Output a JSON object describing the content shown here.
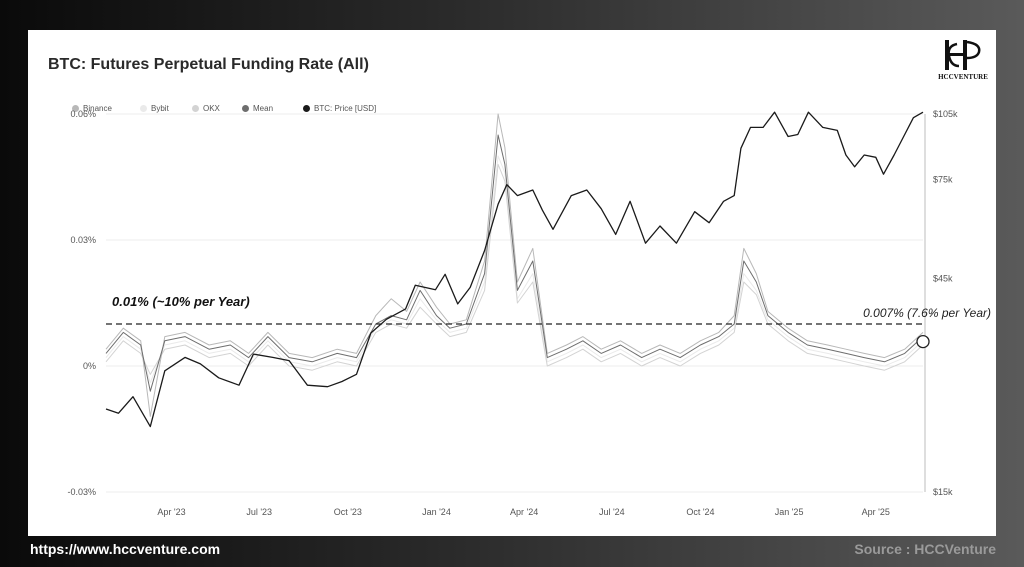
{
  "chart_data": {
    "type": "line",
    "title": "BTC: Futures Perpetual Funding Rate (All)",
    "legend": [
      "Binance",
      "Bybit",
      "OKX",
      "Mean",
      "BTC: Price [USD]"
    ],
    "legend_placement": "top-left",
    "series_colors": {
      "Binance": "#b8b8b8",
      "Bybit": "#eaeaea",
      "OKX": "#d3d3d3",
      "Mean": "#6e6e6e",
      "BTC: Price [USD]": "#1a1a1a"
    },
    "x_tick_labels": [
      "Apr '23",
      "Jul '23",
      "Oct '23",
      "Jan '24",
      "Apr '24",
      "Jul '24",
      "Oct '24",
      "Jan '25",
      "Apr '25"
    ],
    "x_range": [
      "2023-01-23",
      "2025-05-20"
    ],
    "y_left": {
      "range": [
        -0.03,
        0.06
      ],
      "ticks": [
        -0.03,
        0,
        0.03,
        0.06
      ],
      "tick_labels": [
        "-0.03%",
        "0%",
        "0.03%",
        "0.06%"
      ]
    },
    "y_right": {
      "scale": "log",
      "range": [
        15000,
        105000
      ],
      "ticks": [
        15000,
        45000,
        75000,
        105000
      ],
      "tick_labels": [
        "$15k",
        "$45k",
        "$75k",
        "$105k"
      ]
    },
    "grid": true,
    "reference_line": {
      "value": 0.01,
      "style": "dashed"
    },
    "annotations": {
      "left_text": "0.01% (~10% per Year)",
      "right_text": "0.007% (7.6% per Year)"
    },
    "latest_funding_marker": {
      "date": "2025-05-20",
      "value": 0.007
    },
    "btc_price": {
      "dates": [
        "2023-01-23",
        "2023-02-05",
        "2023-02-20",
        "2023-03-10",
        "2023-03-25",
        "2023-04-15",
        "2023-05-01",
        "2023-05-20",
        "2023-06-10",
        "2023-06-25",
        "2023-07-15",
        "2023-08-01",
        "2023-08-20",
        "2023-09-10",
        "2023-09-25",
        "2023-10-10",
        "2023-10-25",
        "2023-11-10",
        "2023-11-30",
        "2023-12-10",
        "2023-12-31",
        "2024-01-10",
        "2024-01-23",
        "2024-02-05",
        "2024-02-20",
        "2024-03-05",
        "2024-03-14",
        "2024-03-25",
        "2024-04-10",
        "2024-04-20",
        "2024-05-01",
        "2024-05-20",
        "2024-06-05",
        "2024-06-20",
        "2024-07-05",
        "2024-07-20",
        "2024-08-05",
        "2024-08-20",
        "2024-09-06",
        "2024-09-25",
        "2024-10-10",
        "2024-10-25",
        "2024-11-05",
        "2024-11-12",
        "2024-11-22",
        "2024-12-05",
        "2024-12-17",
        "2024-12-31",
        "2025-01-10",
        "2025-01-21",
        "2025-02-05",
        "2025-02-20",
        "2025-03-01",
        "2025-03-10",
        "2025-03-20",
        "2025-04-01",
        "2025-04-09",
        "2025-04-20",
        "2025-05-01",
        "2025-05-10",
        "2025-05-20"
      ],
      "values": [
        23000,
        22500,
        24500,
        21000,
        28000,
        30000,
        29000,
        27000,
        26000,
        30500,
        30000,
        29500,
        26000,
        25800,
        26500,
        27500,
        34000,
        36500,
        38500,
        43500,
        42500,
        46000,
        39500,
        43000,
        52000,
        66000,
        73000,
        69000,
        71000,
        64000,
        58000,
        69000,
        71000,
        64500,
        56500,
        67000,
        54000,
        59000,
        54000,
        63500,
        60000,
        67000,
        69000,
        88000,
        98000,
        98000,
        106000,
        93500,
        94500,
        106000,
        98000,
        96500,
        85000,
        80000,
        85000,
        84000,
        77000,
        85000,
        94500,
        103000,
        106000
      ]
    },
    "mean_funding_rate": {
      "dates": [
        "2023-01-23",
        "2023-02-10",
        "2023-02-28",
        "2023-03-10",
        "2023-03-25",
        "2023-04-15",
        "2023-05-10",
        "2023-06-01",
        "2023-06-20",
        "2023-07-10",
        "2023-08-01",
        "2023-08-25",
        "2023-09-20",
        "2023-10-10",
        "2023-10-30",
        "2023-11-15",
        "2023-12-01",
        "2023-12-15",
        "2024-01-01",
        "2024-01-15",
        "2024-02-01",
        "2024-02-20",
        "2024-03-05",
        "2024-03-12",
        "2024-03-25",
        "2024-04-10",
        "2024-04-25",
        "2024-05-15",
        "2024-06-01",
        "2024-06-20",
        "2024-07-10",
        "2024-08-01",
        "2024-08-20",
        "2024-09-10",
        "2024-10-01",
        "2024-10-20",
        "2024-11-05",
        "2024-11-15",
        "2024-11-28",
        "2024-12-10",
        "2024-12-31",
        "2025-01-20",
        "2025-02-10",
        "2025-03-01",
        "2025-03-20",
        "2025-04-10",
        "2025-05-01",
        "2025-05-20"
      ],
      "values": [
        0.003,
        0.008,
        0.005,
        -0.006,
        0.006,
        0.007,
        0.004,
        0.005,
        0.002,
        0.007,
        0.002,
        0.001,
        0.003,
        0.002,
        0.01,
        0.012,
        0.011,
        0.018,
        0.012,
        0.009,
        0.01,
        0.022,
        0.055,
        0.048,
        0.018,
        0.025,
        0.002,
        0.004,
        0.006,
        0.003,
        0.005,
        0.002,
        0.004,
        0.002,
        0.005,
        0.007,
        0.01,
        0.025,
        0.02,
        0.012,
        0.008,
        0.005,
        0.004,
        0.003,
        0.002,
        0.001,
        0.003,
        0.007
      ]
    },
    "binance_funding_rate": {
      "dates": [
        "2023-01-23",
        "2023-02-10",
        "2023-02-28",
        "2023-03-10",
        "2023-03-25",
        "2023-04-15",
        "2023-05-10",
        "2023-06-01",
        "2023-06-20",
        "2023-07-10",
        "2023-08-01",
        "2023-08-25",
        "2023-09-20",
        "2023-10-10",
        "2023-10-30",
        "2023-11-15",
        "2023-12-01",
        "2023-12-15",
        "2024-01-01",
        "2024-01-15",
        "2024-02-01",
        "2024-02-20",
        "2024-03-05",
        "2024-03-12",
        "2024-03-25",
        "2024-04-10",
        "2024-04-25",
        "2024-05-15",
        "2024-06-01",
        "2024-06-20",
        "2024-07-10",
        "2024-08-01",
        "2024-08-20",
        "2024-09-10",
        "2024-10-01",
        "2024-10-20",
        "2024-11-05",
        "2024-11-15",
        "2024-11-28",
        "2024-12-10",
        "2024-12-31",
        "2025-01-20",
        "2025-02-10",
        "2025-03-01",
        "2025-03-20",
        "2025-04-10",
        "2025-05-01",
        "2025-05-20"
      ],
      "values": [
        0.004,
        0.009,
        0.006,
        -0.012,
        0.007,
        0.008,
        0.005,
        0.006,
        0.003,
        0.008,
        0.003,
        0.002,
        0.004,
        0.003,
        0.012,
        0.016,
        0.013,
        0.02,
        0.014,
        0.01,
        0.011,
        0.025,
        0.06,
        0.052,
        0.02,
        0.028,
        0.003,
        0.005,
        0.007,
        0.004,
        0.006,
        0.003,
        0.005,
        0.003,
        0.006,
        0.008,
        0.012,
        0.028,
        0.022,
        0.013,
        0.009,
        0.006,
        0.005,
        0.004,
        0.003,
        0.002,
        0.004,
        0.008
      ]
    },
    "bybit_funding_rate": {
      "dates": [
        "2023-01-23",
        "2023-02-10",
        "2023-02-28",
        "2023-03-10",
        "2023-03-25",
        "2023-04-15",
        "2023-05-10",
        "2023-06-01",
        "2023-06-20",
        "2023-07-10",
        "2023-08-01",
        "2023-08-25",
        "2023-09-20",
        "2023-10-10",
        "2023-10-30",
        "2023-11-15",
        "2023-12-01",
        "2023-12-15",
        "2024-01-01",
        "2024-01-15",
        "2024-02-01",
        "2024-02-20",
        "2024-03-05",
        "2024-03-12",
        "2024-03-25",
        "2024-04-10",
        "2024-04-25",
        "2024-05-15",
        "2024-06-01",
        "2024-06-20",
        "2024-07-10",
        "2024-08-01",
        "2024-08-20",
        "2024-09-10",
        "2024-10-01",
        "2024-10-20",
        "2024-11-05",
        "2024-11-15",
        "2024-11-28",
        "2024-12-10",
        "2024-12-31",
        "2025-01-20",
        "2025-02-10",
        "2025-03-01",
        "2025-03-20",
        "2025-04-10",
        "2025-05-01",
        "2025-05-20"
      ],
      "values": [
        0.002,
        0.007,
        0.004,
        -0.004,
        0.005,
        0.006,
        0.003,
        0.004,
        0.001,
        0.006,
        0.001,
        0.0,
        0.002,
        0.001,
        0.009,
        0.011,
        0.01,
        0.016,
        0.011,
        0.008,
        0.009,
        0.02,
        0.05,
        0.046,
        0.016,
        0.022,
        0.001,
        0.003,
        0.005,
        0.002,
        0.004,
        0.001,
        0.003,
        0.001,
        0.004,
        0.006,
        0.009,
        0.022,
        0.018,
        0.011,
        0.007,
        0.004,
        0.003,
        0.002,
        0.001,
        0.0,
        0.002,
        0.006
      ]
    },
    "okx_funding_rate": {
      "dates": [
        "2023-01-23",
        "2023-02-10",
        "2023-02-28",
        "2023-03-10",
        "2023-03-25",
        "2023-04-15",
        "2023-05-10",
        "2023-06-01",
        "2023-06-20",
        "2023-07-10",
        "2023-08-01",
        "2023-08-25",
        "2023-09-20",
        "2023-10-10",
        "2023-10-30",
        "2023-11-15",
        "2023-12-01",
        "2023-12-15",
        "2024-01-01",
        "2024-01-15",
        "2024-02-01",
        "2024-02-20",
        "2024-03-05",
        "2024-03-12",
        "2024-03-25",
        "2024-04-10",
        "2024-04-25",
        "2024-05-15",
        "2024-06-01",
        "2024-06-20",
        "2024-07-10",
        "2024-08-01",
        "2024-08-20",
        "2024-09-10",
        "2024-10-01",
        "2024-10-20",
        "2024-11-05",
        "2024-11-15",
        "2024-11-28",
        "2024-12-10",
        "2024-12-31",
        "2025-01-20",
        "2025-02-10",
        "2025-03-01",
        "2025-03-20",
        "2025-04-10",
        "2025-05-01",
        "2025-05-20"
      ],
      "values": [
        0.001,
        0.006,
        0.003,
        -0.002,
        0.004,
        0.005,
        0.002,
        0.003,
        0.0,
        0.005,
        0.0,
        -0.001,
        0.001,
        0.0,
        0.008,
        0.01,
        0.009,
        0.014,
        0.01,
        0.007,
        0.008,
        0.018,
        0.048,
        0.044,
        0.015,
        0.02,
        0.0,
        0.002,
        0.004,
        0.001,
        0.003,
        0.0,
        0.002,
        0.0,
        0.003,
        0.005,
        0.008,
        0.02,
        0.017,
        0.01,
        0.006,
        0.003,
        0.002,
        0.001,
        0.0,
        -0.001,
        0.001,
        0.005
      ]
    }
  },
  "footer": {
    "url": "https://www.hccventure.com",
    "source": "Source : HCCVenture"
  },
  "logo": {
    "text": "HCCVENTURE"
  }
}
